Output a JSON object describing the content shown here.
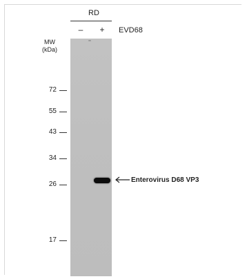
{
  "header": {
    "cell_line": "RD",
    "lanes": [
      "–",
      "+"
    ],
    "treatment": "EVD68"
  },
  "mw_title_line1": "MW",
  "mw_title_line2": "(kDa)",
  "markers": [
    "72",
    "55",
    "43",
    "34",
    "26",
    "17"
  ],
  "band": {
    "label": "Enterovirus D68 VP3"
  },
  "colors": {
    "membrane": "#c0c0c0",
    "band": "#0c0c0c",
    "text": "#222222"
  },
  "icons": {
    "arrow": "left-arrow-icon"
  }
}
